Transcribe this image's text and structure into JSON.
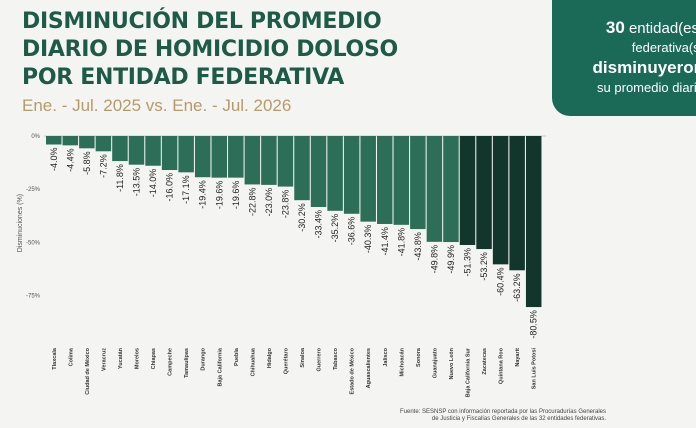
{
  "title": {
    "line1": "DISMINUCIÓN DEL PROMEDIO",
    "line2": "DIARIO DE HOMICIDIO DOLOSO",
    "line3": "POR ENTIDAD FEDERATIVA"
  },
  "subtitle": "Ene. - Jul. 2025 vs. Ene. - Jul. 2026",
  "badge": {
    "count": "30",
    "line1_rest": "entidad(es)",
    "line2": "federativa(s)",
    "line3": "disminuyeron",
    "line4": "su promedio diario"
  },
  "source": {
    "line1": "Fuente: SESNSP con información reportada por las Procuradurías Generales",
    "line2": "de Justicia y Fiscalías Generales de las 32 entidades federativas."
  },
  "colors": {
    "title": "#1e5a48",
    "subtitle": "#b79a6a",
    "badge_bg": "#1b6a58",
    "bar_light": "#2c6e58",
    "bar_dark": "#12352c"
  },
  "chart_data": {
    "type": "bar",
    "ylabel": "Disminuciones (%)",
    "ylim": [
      -82,
      0
    ],
    "yticks": [
      0,
      -25,
      -50,
      -75
    ],
    "ytick_labels": [
      "0%",
      "-25%",
      "-50%",
      "-75%"
    ],
    "grid": false,
    "dark_from_index": 25,
    "categories": [
      "Tlaxcala",
      "Colima",
      "Ciudad de México",
      "Veracruz",
      "Yucatán",
      "Morelos",
      "Chiapas",
      "Campeche",
      "Tamaulipas",
      "Durango",
      "Baja California",
      "Puebla",
      "Chihuahua",
      "Hidalgo",
      "Querétaro",
      "Sinaloa",
      "Guerrero",
      "Tabasco",
      "Estado de México",
      "Aguascalientes",
      "Jalisco",
      "Michoacán",
      "Sonora",
      "Guanajuato",
      "Nuevo León",
      "Baja California Sur",
      "Zacatecas",
      "Quintana Roo",
      "Nayarit",
      "San Luis Potosí"
    ],
    "values": [
      -4.0,
      -4.4,
      -5.8,
      -7.2,
      -11.8,
      -13.5,
      -14.0,
      -16.0,
      -17.1,
      -19.4,
      -19.6,
      -19.6,
      -22.8,
      -23.0,
      -23.8,
      -30.2,
      -33.4,
      -35.2,
      -36.6,
      -40.3,
      -41.4,
      -41.8,
      -43.8,
      -49.8,
      -49.9,
      -51.3,
      -53.2,
      -60.4,
      -63.2,
      -80.5
    ],
    "labels": [
      "-4.0%",
      "-4.4%",
      "-5.8%",
      "-7.2%",
      "-11.8%",
      "-13.5%",
      "-14.0%",
      "-16.0%",
      "-17.1%",
      "-19.4%",
      "-19.6%",
      "-19.6%",
      "-22.8%",
      "-23.0%",
      "-23.8%",
      "-30.2%",
      "-33.4%",
      "-35.2%",
      "-36.6%",
      "-40.3%",
      "-41.4%",
      "-41.8%",
      "-43.8%",
      "-49.8%",
      "-49.9%",
      "-51.3%",
      "-53.2%",
      "-60.4%",
      "-63.2%",
      "-80.5%"
    ]
  }
}
